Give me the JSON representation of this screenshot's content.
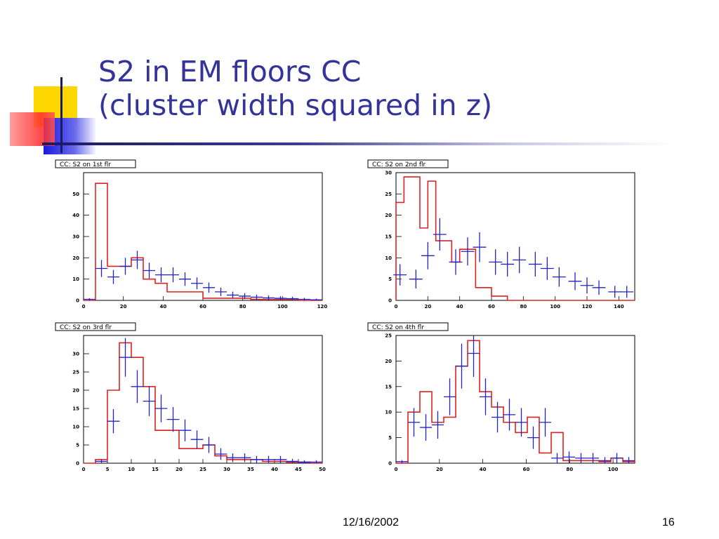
{
  "slide": {
    "title_line1": "S2 in EM floors CC",
    "title_line2": "(cluster width squared in z)",
    "date": "12/16/2002",
    "page_number": "16"
  },
  "colors": {
    "title": "#33339a",
    "data": "#2222cc",
    "mc": "#dd2222",
    "frame": "#000000"
  },
  "chart_data": [
    {
      "type": "histogram",
      "title": "CC: S2 on 1st flr",
      "xlim": [
        0,
        120
      ],
      "ylim": [
        0,
        60
      ],
      "xticks": [
        0,
        20,
        40,
        60,
        80,
        100,
        120
      ],
      "yticks": [
        0,
        10,
        20,
        30,
        40,
        50
      ],
      "mc_hist": {
        "edges": [
          0,
          6,
          12,
          18,
          24,
          30,
          36,
          42,
          48,
          54,
          60,
          66,
          72,
          78,
          84,
          90,
          96,
          102,
          108,
          114,
          120
        ],
        "values": [
          0,
          55,
          16,
          16,
          20,
          10,
          8,
          4,
          4,
          4,
          1,
          1,
          1,
          1,
          0.5,
          0.5,
          0.5,
          0.5,
          0,
          0
        ]
      },
      "data_points": {
        "x": [
          3,
          9,
          15,
          21,
          27,
          33,
          39,
          45,
          51,
          57,
          63,
          69,
          75,
          81,
          87,
          93,
          99,
          105,
          111,
          117
        ],
        "y": [
          0.5,
          15,
          11,
          16,
          19,
          14,
          12,
          12,
          10,
          8,
          6,
          4,
          2.5,
          2,
          1.5,
          1.2,
          1,
          0.8,
          0.5,
          0.3
        ],
        "err": [
          0.5,
          4,
          3.3,
          4,
          4.3,
          3.7,
          3.5,
          3.5,
          3.2,
          2.8,
          2.4,
          2,
          1.6,
          1.4,
          1.2,
          1.1,
          1,
          0.9,
          0.7,
          0.5
        ]
      }
    },
    {
      "type": "histogram",
      "title": "CC: S2 on 2nd flr",
      "xlim": [
        0,
        150
      ],
      "ylim": [
        0,
        30
      ],
      "xticks": [
        0,
        20,
        40,
        60,
        80,
        100,
        120,
        140
      ],
      "yticks": [
        0,
        5,
        10,
        15,
        20,
        25,
        30
      ],
      "mc_hist": {
        "edges": [
          0,
          5,
          10,
          15,
          20,
          25,
          30,
          35,
          40,
          45,
          50,
          55,
          60,
          65,
          70,
          75,
          150
        ],
        "values": [
          23,
          29,
          29,
          17,
          28,
          14,
          14,
          9,
          12,
          12,
          3,
          3,
          1,
          1,
          0,
          0
        ]
      },
      "data_points": {
        "x": [
          2.5,
          12.5,
          20,
          27.5,
          37.5,
          45,
          52.5,
          62.5,
          70,
          77.5,
          87.5,
          95,
          102.5,
          112.5,
          120,
          127.5,
          137.5,
          145
        ],
        "y": [
          6,
          5,
          10.5,
          15.5,
          9,
          11.5,
          12.5,
          9,
          8.5,
          9.5,
          8.5,
          7.5,
          5.5,
          4.5,
          3.5,
          3,
          2,
          2
        ],
        "err": [
          2.5,
          2.2,
          3.2,
          3.8,
          3,
          3.3,
          3.5,
          3,
          2.9,
          3.1,
          2.9,
          2.7,
          2.3,
          2.1,
          1.9,
          1.7,
          1.4,
          1.4
        ]
      }
    },
    {
      "type": "histogram",
      "title": "CC: S2 on 3rd flr",
      "xlim": [
        0,
        50
      ],
      "ylim": [
        0,
        35
      ],
      "xticks": [
        0,
        5,
        10,
        15,
        20,
        25,
        30,
        35,
        40,
        45,
        50
      ],
      "yticks": [
        0,
        5,
        10,
        15,
        20,
        25,
        30
      ],
      "mc_hist": {
        "edges": [
          0,
          2.5,
          5,
          7.5,
          10,
          12.5,
          15,
          17.5,
          20,
          22.5,
          25,
          27.5,
          30,
          32.5,
          35,
          37.5,
          40,
          42.5,
          45,
          47.5,
          50
        ],
        "values": [
          0,
          1,
          20,
          33,
          29,
          21,
          9,
          9,
          4,
          4,
          5,
          2,
          1,
          1,
          1,
          0.5,
          0.5,
          0.3,
          0.3,
          0
        ],
        "width": [
          2.5,
          2.5,
          2.5,
          2.5,
          2.5,
          2.5,
          2.5,
          2.5,
          2.5,
          2.5,
          2.5,
          2.5,
          2.5,
          2.5,
          2.5,
          2.5,
          2.5,
          2.5,
          2.5,
          2.5
        ]
      },
      "data_points": {
        "x": [
          3.75,
          6.25,
          8.75,
          11.25,
          13.75,
          16.25,
          18.75,
          21.25,
          23.75,
          26.25,
          28.75,
          31.25,
          33.75,
          36.25,
          38.75,
          41.25,
          43.75,
          46.25,
          48.75
        ],
        "y": [
          0.5,
          11.5,
          29,
          21,
          17,
          15,
          12,
          9,
          6.5,
          5,
          2.5,
          1.5,
          1.5,
          1,
          1,
          1,
          0.5,
          0.3,
          0.3
        ],
        "err": [
          0.5,
          3.3,
          5.3,
          4.5,
          4.1,
          3.8,
          3.4,
          3,
          2.5,
          2.2,
          1.6,
          1.2,
          1.2,
          1,
          1,
          1,
          0.7,
          0.5,
          0.5
        ]
      }
    },
    {
      "type": "histogram",
      "title": "CC: S2 on 4th flr",
      "xlim": [
        0,
        110
      ],
      "ylim": [
        0,
        25
      ],
      "xticks": [
        0,
        20,
        40,
        60,
        80,
        100
      ],
      "yticks": [
        0,
        5,
        10,
        15,
        20,
        25
      ],
      "mc_hist": {
        "edges": [
          0,
          5.5,
          11,
          16.5,
          22,
          27.5,
          33,
          38.5,
          44,
          49.5,
          55,
          60.5,
          66,
          71.5,
          77,
          82.5,
          88,
          93.5,
          99,
          104.5,
          110
        ],
        "values": [
          0,
          10,
          14,
          8,
          9,
          19,
          24,
          14,
          11,
          8,
          6,
          9,
          2,
          6,
          0.5,
          0.5,
          0.5,
          0.3,
          1,
          0.3
        ]
      },
      "data_points": {
        "x": [
          2.75,
          8.25,
          13.75,
          19.25,
          24.75,
          30.25,
          35.75,
          41.25,
          46.75,
          52.25,
          57.75,
          63.25,
          68.75,
          74.25,
          79.75,
          85.25,
          90.75,
          96.25,
          101.75,
          107.25
        ],
        "y": [
          0.3,
          8,
          7,
          7.5,
          13,
          19,
          21.5,
          13,
          9,
          9.5,
          8,
          5,
          8,
          1,
          1.2,
          1,
          1,
          0.5,
          1,
          0.5
        ],
        "err": [
          0.3,
          2.8,
          2.6,
          2.7,
          3.6,
          4.4,
          4.6,
          3.6,
          3,
          3.1,
          2.8,
          2.2,
          2.8,
          1,
          1.1,
          1,
          1,
          0.7,
          1,
          0.7
        ]
      }
    }
  ]
}
